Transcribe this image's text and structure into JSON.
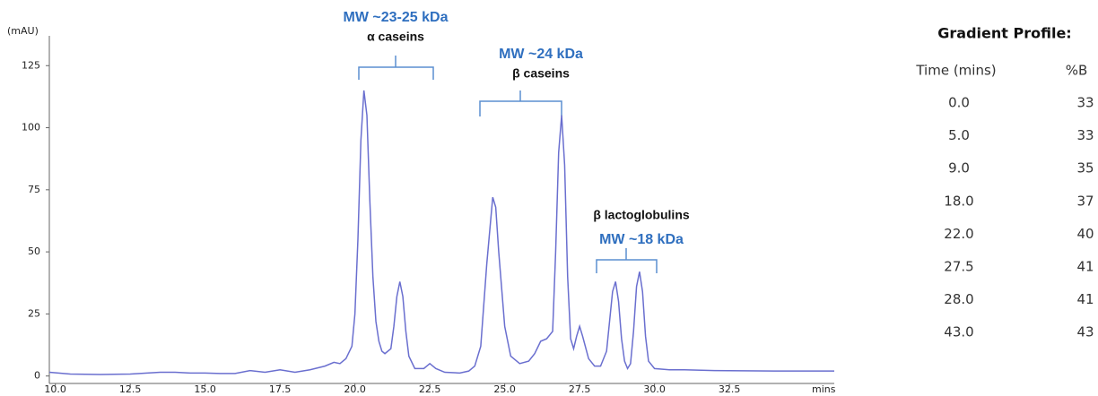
{
  "chart_data": {
    "type": "line",
    "y_label": "(mAU)",
    "x_label": "mins",
    "color": "#6a6fcf",
    "xlim": [
      9.8,
      36
    ],
    "ylim": [
      -3,
      137
    ],
    "xticks": [
      {
        "value": 10,
        "label": "10.0"
      },
      {
        "value": 12.5,
        "label": "12.5"
      },
      {
        "value": 15,
        "label": "15.0"
      },
      {
        "value": 17.5,
        "label": "17.5"
      },
      {
        "value": 20,
        "label": "20.0"
      },
      {
        "value": 22.5,
        "label": "22.5"
      },
      {
        "value": 25,
        "label": "25.0"
      },
      {
        "value": 27.5,
        "label": "27.5"
      },
      {
        "value": 30,
        "label": "30.0"
      },
      {
        "value": 32.5,
        "label": "32.5"
      }
    ],
    "yticks": [
      0,
      25,
      50,
      75,
      100,
      125
    ],
    "x": [
      9.8,
      10.5,
      11.5,
      12.5,
      13.5,
      14.0,
      14.5,
      15.0,
      15.5,
      16.0,
      16.5,
      17.0,
      17.5,
      18.0,
      18.5,
      19.0,
      19.3,
      19.5,
      19.7,
      19.9,
      20.0,
      20.1,
      20.2,
      20.3,
      20.4,
      20.5,
      20.6,
      20.7,
      20.8,
      20.9,
      21.0,
      21.2,
      21.3,
      21.4,
      21.5,
      21.6,
      21.7,
      21.8,
      22.0,
      22.3,
      22.5,
      22.7,
      23.0,
      23.5,
      23.8,
      24.0,
      24.2,
      24.4,
      24.6,
      24.7,
      24.8,
      25.0,
      25.2,
      25.5,
      25.8,
      26.0,
      26.2,
      26.4,
      26.6,
      26.7,
      26.8,
      26.9,
      27.0,
      27.1,
      27.2,
      27.3,
      27.4,
      27.5,
      27.6,
      27.8,
      28.0,
      28.2,
      28.4,
      28.5,
      28.6,
      28.7,
      28.8,
      28.9,
      29.0,
      29.1,
      29.2,
      29.3,
      29.4,
      29.5,
      29.6,
      29.7,
      29.8,
      30.0,
      30.5,
      31.0,
      32.0,
      34.0,
      36.0
    ],
    "values": [
      1.5,
      0.8,
      0.6,
      0.8,
      1.5,
      1.5,
      1.2,
      1.2,
      1.0,
      1.0,
      2.2,
      1.5,
      2.5,
      1.5,
      2.5,
      4,
      5.5,
      5,
      7,
      12,
      25,
      55,
      95,
      115,
      105,
      70,
      40,
      22,
      14,
      10,
      9,
      11,
      20,
      32,
      38,
      32,
      18,
      8,
      3,
      3,
      5,
      3,
      1.5,
      1.2,
      2,
      4,
      12,
      45,
      72,
      68,
      50,
      20,
      8,
      5,
      6,
      9,
      14,
      15,
      18,
      50,
      90,
      105,
      85,
      40,
      15,
      11,
      16,
      20,
      16,
      7,
      4,
      4,
      10,
      22,
      34,
      38,
      30,
      15,
      6,
      3,
      5,
      18,
      36,
      42,
      34,
      16,
      6,
      3,
      2.5,
      2.5,
      2.2,
      2,
      2
    ],
    "annotations": [
      {
        "title": "MW ~23-25 kDa",
        "label": "α caseins"
      },
      {
        "title": "MW ~24 kDa",
        "label": "β caseins"
      },
      {
        "title": "MW ~18 kDa",
        "label": "β lactoglobulins"
      }
    ]
  },
  "table": {
    "title": "Gradient Profile:",
    "headers": [
      "Time (mins)",
      "%B"
    ],
    "rows": [
      [
        "0.0",
        "33"
      ],
      [
        "5.0",
        "33"
      ],
      [
        "9.0",
        "35"
      ],
      [
        "18.0",
        "37"
      ],
      [
        "22.0",
        "40"
      ],
      [
        "27.5",
        "41"
      ],
      [
        "28.0",
        "41"
      ],
      [
        "43.0",
        "43"
      ]
    ]
  }
}
